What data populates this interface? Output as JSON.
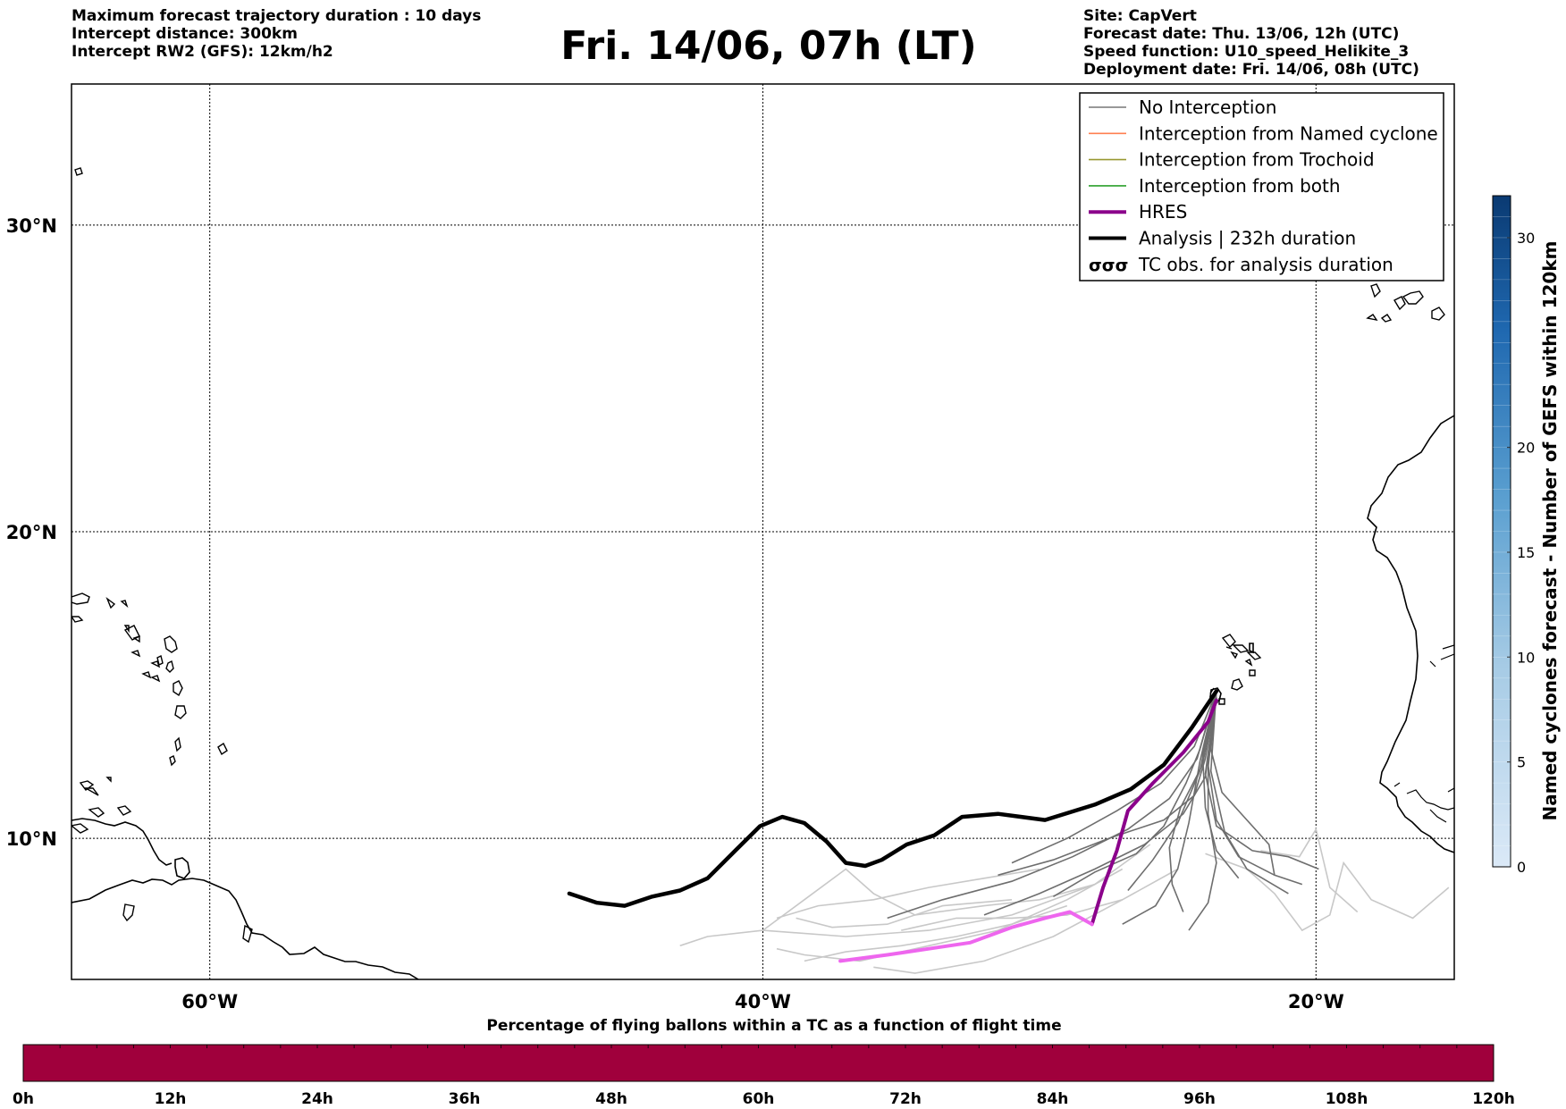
{
  "header_left": [
    "Maximum forecast trajectory duration : 10 days",
    "Intercept distance: 300km",
    "Intercept RW2 (GFS):  12km/h2"
  ],
  "title": "Fri. 14/06, 07h (LT)",
  "header_right": [
    "Site: CapVert",
    "Forecast date: Thu. 13/06, 12h (UTC)",
    "Speed function: U10_speed_Helikite_3",
    "Deployment date: Fri. 14/06, 08h (UTC)"
  ],
  "map": {
    "lon_range": [
      -65,
      -15
    ],
    "lat_range": [
      5.4,
      34.6
    ],
    "lon_ticks": [
      {
        "lon": -60,
        "label": "60°W"
      },
      {
        "lon": -40,
        "label": "40°W"
      },
      {
        "lon": -20,
        "label": "20°W"
      }
    ],
    "lat_ticks": [
      {
        "lat": 30,
        "label": "30°N"
      },
      {
        "lat": 20,
        "label": "20°N"
      },
      {
        "lat": 10,
        "label": "10°N"
      }
    ],
    "deployment_site": {
      "lon": -23.5,
      "lat": 14.8
    }
  },
  "legend": {
    "items": [
      {
        "label": "No Interception",
        "color": "#777777",
        "style": "thin"
      },
      {
        "label": "Interception from Named cyclone",
        "color": "#ff7f50",
        "style": "thin"
      },
      {
        "label": "Interception from Trochoid",
        "color": "#999933",
        "style": "thin"
      },
      {
        "label": "Interception from both",
        "color": "#2ca02c",
        "style": "thin"
      },
      {
        "label": "HRES",
        "color": "#8b008b",
        "style": "thick"
      },
      {
        "label": "Analysis | 232h duration",
        "color": "#000000",
        "style": "thick"
      },
      {
        "label": "TC obs. for analysis duration",
        "color": "#000000",
        "style": "symbol"
      }
    ]
  },
  "colorbar_right": {
    "label": "Named cyclones forecast - Number of GEFS within 120km",
    "range": [
      0,
      32
    ],
    "ticks": [
      "0",
      "5",
      "10",
      "15",
      "20",
      "30"
    ],
    "tick_values": [
      0,
      5,
      10,
      15,
      20,
      30
    ]
  },
  "colorbar_bottom": {
    "title": "Percentage of flying ballons within a TC as a function of flight time",
    "color": "#a0003c",
    "ticks": [
      "0h",
      "12h",
      "24h",
      "36h",
      "48h",
      "60h",
      "72h",
      "84h",
      "96h",
      "108h",
      "120h"
    ]
  },
  "trajectories": {
    "analysis": [
      [
        -23.6,
        14.8
      ],
      [
        -24.5,
        13.6
      ],
      [
        -25.5,
        12.4
      ],
      [
        -26.7,
        11.6
      ],
      [
        -28,
        11.1
      ],
      [
        -29.8,
        10.6
      ],
      [
        -31.5,
        10.8
      ],
      [
        -32.8,
        10.7
      ],
      [
        -33.8,
        10.1
      ],
      [
        -34.8,
        9.8
      ],
      [
        -35.7,
        9.3
      ],
      [
        -36.3,
        9.1
      ],
      [
        -37,
        9.2
      ],
      [
        -37.7,
        9.9
      ],
      [
        -38.5,
        10.5
      ],
      [
        -39.3,
        10.7
      ],
      [
        -40.1,
        10.4
      ],
      [
        -41,
        9.6
      ],
      [
        -42,
        8.7
      ],
      [
        -43,
        8.3
      ],
      [
        -44,
        8.1
      ],
      [
        -45,
        7.8
      ],
      [
        -46,
        7.9
      ],
      [
        -47,
        8.2
      ]
    ],
    "hres": [
      [
        -23.6,
        14.5
      ],
      [
        -23.9,
        13.8
      ],
      [
        -24.8,
        12.8
      ],
      [
        -25.9,
        11.8
      ],
      [
        -26.8,
        10.9
      ],
      [
        -27.2,
        9.6
      ],
      [
        -27.7,
        8.4
      ],
      [
        -27.9,
        7.8
      ],
      [
        -28.1,
        7.2
      ],
      [
        -28.9,
        7.6
      ],
      [
        -29.8,
        7.4
      ],
      [
        -31,
        7.1
      ],
      [
        -32.5,
        6.6
      ],
      [
        -34,
        6.4
      ],
      [
        -35.5,
        6.2
      ],
      [
        -37.2,
        6.0
      ]
    ],
    "ensemble_dark": [
      [
        [
          -23.6,
          14.8
        ],
        [
          -24.2,
          12.5
        ],
        [
          -24.6,
          10.5
        ],
        [
          -25,
          9.0
        ],
        [
          -25.8,
          7.8
        ],
        [
          -27.0,
          7.2
        ]
      ],
      [
        [
          -23.6,
          14.8
        ],
        [
          -23.8,
          12.2
        ],
        [
          -23.3,
          10.2
        ],
        [
          -22.5,
          9.0
        ],
        [
          -21.0,
          8.2
        ]
      ],
      [
        [
          -23.6,
          14.8
        ],
        [
          -24.0,
          12.0
        ],
        [
          -24.8,
          10.8
        ],
        [
          -26.2,
          9.8
        ],
        [
          -28.0,
          9.0
        ],
        [
          -30.0,
          8.2
        ],
        [
          -32.0,
          7.5
        ]
      ],
      [
        [
          -23.6,
          14.8
        ],
        [
          -24.1,
          12.8
        ],
        [
          -24.0,
          11.0
        ],
        [
          -23.6,
          9.6
        ],
        [
          -22.8,
          8.7
        ]
      ],
      [
        [
          -23.6,
          14.8
        ],
        [
          -24.3,
          12.6
        ],
        [
          -25.3,
          11.3
        ],
        [
          -26.8,
          10.3
        ],
        [
          -28.8,
          9.4
        ],
        [
          -31.0,
          8.6
        ],
        [
          -33.5,
          8.0
        ],
        [
          -35.5,
          7.4
        ]
      ],
      [
        [
          -23.6,
          14.8
        ],
        [
          -23.9,
          12.4
        ],
        [
          -23.6,
          10.6
        ],
        [
          -22.8,
          9.4
        ],
        [
          -21.5,
          8.8
        ],
        [
          -20.5,
          8.5
        ]
      ],
      [
        [
          -23.6,
          14.8
        ],
        [
          -24.2,
          12.2
        ],
        [
          -25.0,
          10.5
        ],
        [
          -25.9,
          9.3
        ],
        [
          -26.8,
          8.3
        ]
      ],
      [
        [
          -23.6,
          14.8
        ],
        [
          -24.0,
          12.6
        ],
        [
          -24.4,
          11.4
        ],
        [
          -25.5,
          10.6
        ],
        [
          -27.5,
          10.0
        ],
        [
          -29.5,
          9.3
        ],
        [
          -31.5,
          8.8
        ]
      ],
      [
        [
          -23.6,
          14.8
        ],
        [
          -23.8,
          12.9
        ],
        [
          -23.4,
          11.5
        ],
        [
          -22.5,
          10.6
        ],
        [
          -21.7,
          9.8
        ],
        [
          -21.5,
          8.8
        ]
      ],
      [
        [
          -23.6,
          14.8
        ],
        [
          -24.4,
          13.0
        ],
        [
          -25.6,
          11.8
        ],
        [
          -27.2,
          10.9
        ],
        [
          -29.0,
          10.0
        ],
        [
          -31.0,
          9.2
        ]
      ],
      [
        [
          -23.6,
          14.8
        ],
        [
          -24.1,
          12.4
        ],
        [
          -24.9,
          11.0
        ],
        [
          -25.3,
          9.7
        ],
        [
          -25.2,
          8.5
        ],
        [
          -24.8,
          7.6
        ]
      ],
      [
        [
          -23.6,
          14.8
        ],
        [
          -23.9,
          12.3
        ],
        [
          -23.9,
          10.8
        ],
        [
          -23.6,
          9.2
        ],
        [
          -23.9,
          7.9
        ],
        [
          -24.6,
          7.0
        ]
      ],
      [
        [
          -23.6,
          14.8
        ],
        [
          -24.2,
          12.9
        ],
        [
          -24.7,
          11.8
        ],
        [
          -25.5,
          10.4
        ],
        [
          -26.5,
          9.5
        ],
        [
          -28.0,
          8.9
        ],
        [
          -29.5,
          8.1
        ]
      ],
      [
        [
          -23.6,
          14.8
        ],
        [
          -24.0,
          12.1
        ],
        [
          -23.6,
          10.4
        ],
        [
          -22.3,
          9.6
        ],
        [
          -21.0,
          9.4
        ],
        [
          -19.9,
          9.0
        ]
      ]
    ],
    "ensemble_light": [
      [
        [
          -26,
          9.8
        ],
        [
          -28,
          8.5
        ],
        [
          -31,
          7.5
        ],
        [
          -34,
          7.0
        ],
        [
          -37,
          6.8
        ],
        [
          -40,
          7.0
        ],
        [
          -42,
          6.8
        ],
        [
          -43,
          6.5
        ]
      ],
      [
        [
          -27,
          9.0
        ],
        [
          -29,
          8.0
        ],
        [
          -31.5,
          7.0
        ],
        [
          -34,
          6.5
        ],
        [
          -36.5,
          6.0
        ],
        [
          -38.5,
          6.2
        ],
        [
          -39.5,
          6.4
        ]
      ],
      [
        [
          -28,
          8.5
        ],
        [
          -30,
          8.0
        ],
        [
          -32,
          7.8
        ],
        [
          -34.5,
          7.5
        ],
        [
          -36,
          8.2
        ],
        [
          -37,
          9.0
        ],
        [
          -38.5,
          8.0
        ],
        [
          -40,
          7.0
        ]
      ],
      [
        [
          -25,
          9.0
        ],
        [
          -27,
          8.0
        ],
        [
          -29.5,
          6.8
        ],
        [
          -32,
          6.0
        ],
        [
          -34.5,
          5.6
        ],
        [
          -36,
          5.8
        ]
      ],
      [
        [
          -24,
          9.5
        ],
        [
          -22.5,
          9.0
        ],
        [
          -21.5,
          8.2
        ],
        [
          -20.5,
          7.0
        ],
        [
          -19.5,
          7.5
        ],
        [
          -19,
          9.2
        ],
        [
          -18,
          8.0
        ],
        [
          -16.5,
          7.4
        ],
        [
          -15.2,
          8.4
        ]
      ],
      [
        [
          -22,
          9.6
        ],
        [
          -20.6,
          9.4
        ],
        [
          -20,
          10.3
        ],
        [
          -19.5,
          8.4
        ],
        [
          -18.5,
          7.6
        ]
      ],
      [
        [
          -30,
          9.0
        ],
        [
          -32,
          8.7
        ],
        [
          -34,
          8.4
        ],
        [
          -36,
          8.0
        ],
        [
          -38,
          7.8
        ],
        [
          -39.5,
          7.4
        ]
      ],
      [
        [
          -29,
          7.8
        ],
        [
          -31,
          7.2
        ],
        [
          -33,
          6.8
        ],
        [
          -35,
          6.5
        ],
        [
          -37,
          6.3
        ],
        [
          -38.5,
          6.0
        ]
      ],
      [
        [
          -31,
          8.0
        ],
        [
          -33.5,
          7.8
        ],
        [
          -35.5,
          7.2
        ],
        [
          -37.5,
          7.1
        ],
        [
          -38.8,
          7.4
        ]
      ],
      [
        [
          -27,
          8.0
        ],
        [
          -29,
          7.5
        ],
        [
          -31,
          7.4
        ],
        [
          -33,
          7.4
        ],
        [
          -35,
          7.0
        ]
      ]
    ]
  }
}
